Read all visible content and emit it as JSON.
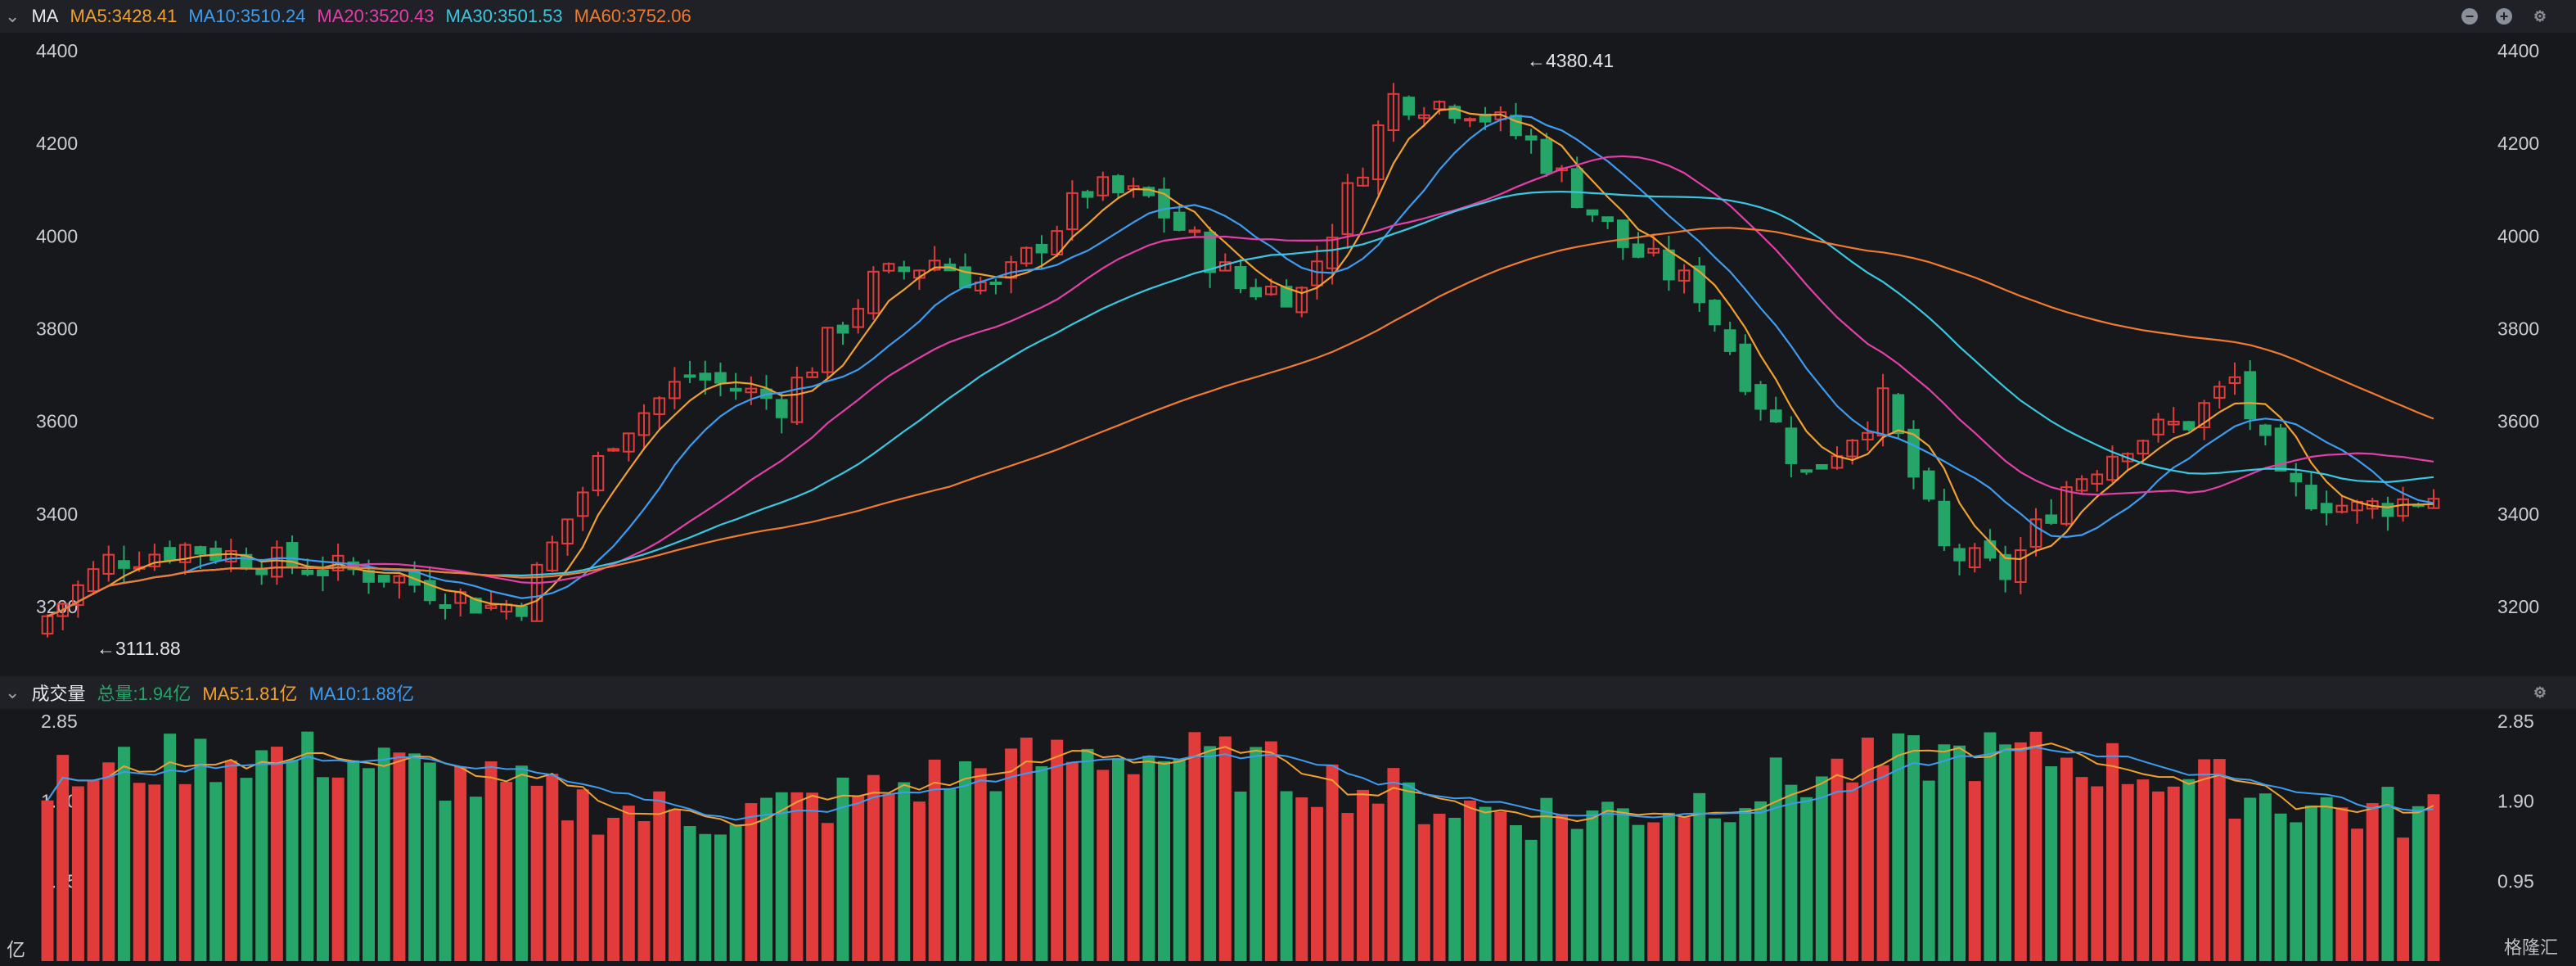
{
  "price_header": {
    "toggle_glyph": "⌄",
    "indicator": "MA",
    "ma5": "MA5:3428.41",
    "ma10": "MA10:3510.24",
    "ma20": "MA20:3520.43",
    "ma30": "MA30:3501.53",
    "ma60": "MA60:3752.06"
  },
  "volume_header": {
    "toggle_glyph": "⌄",
    "title": "成交量",
    "total": "总量:1.94亿",
    "ma5": "MA5:1.81亿",
    "ma10": "MA10:1.88亿"
  },
  "header_controls": {
    "minus": "−",
    "plus": "+",
    "settings": "⚙"
  },
  "watermark": "格隆汇",
  "colors": {
    "up": "#e23b3b",
    "down": "#25a568",
    "ma5": "#f0a030",
    "ma10": "#3d9cf0",
    "ma20": "#e23fa8",
    "ma30": "#3ac7e0",
    "ma60": "#f07a32"
  },
  "chart_data": [
    {
      "type": "candlestick",
      "title": "",
      "y_ticks": [
        "3200",
        "3400",
        "3600",
        "3800",
        "4000",
        "4200",
        "4400"
      ],
      "ylim": [
        3120,
        4430
      ],
      "annotations": {
        "high": "←4380.41",
        "low": "←3111.88"
      },
      "grid": false,
      "series_names": [
        "MA5",
        "MA10",
        "MA20",
        "MA30",
        "MA60"
      ]
    },
    {
      "type": "bar",
      "title": "",
      "y_ticks": [
        "2.85",
        "1.90",
        "0.95"
      ],
      "unit_label": "亿",
      "ylim": [
        0,
        2.85
      ],
      "series_names": [
        "MA5",
        "MA10"
      ]
    }
  ]
}
